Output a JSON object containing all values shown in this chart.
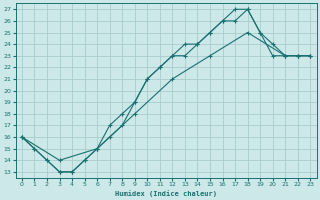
{
  "xlabel": "Humidex (Indice chaleur)",
  "bg_color": "#cce8e8",
  "grid_color": "#aacccc",
  "line_color": "#1a7070",
  "xlim": [
    -0.5,
    23.5
  ],
  "ylim": [
    12.5,
    27.5
  ],
  "line1_x": [
    0,
    1,
    2,
    3,
    4,
    5,
    6,
    7,
    8,
    9,
    10,
    11,
    12,
    13,
    14,
    15,
    16,
    17,
    18,
    19,
    20,
    21,
    22,
    23
  ],
  "line1_y": [
    16,
    15,
    14,
    13,
    13,
    14,
    15,
    16,
    17,
    19,
    21,
    22,
    23,
    24,
    24,
    25,
    26,
    26,
    27,
    25,
    23,
    23,
    23,
    23
  ],
  "line2_x": [
    0,
    1,
    2,
    3,
    4,
    5,
    6,
    7,
    8,
    9,
    10,
    11,
    12,
    13,
    14,
    15,
    16,
    17,
    18,
    19,
    20,
    21,
    22,
    23
  ],
  "line2_y": [
    16,
    15,
    14,
    13,
    13,
    14,
    15,
    17,
    18,
    19,
    21,
    22,
    23,
    23,
    24,
    25,
    26,
    27,
    27,
    25,
    24,
    23,
    23,
    23
  ],
  "line3_x": [
    0,
    3,
    6,
    9,
    12,
    15,
    18,
    21,
    22,
    23
  ],
  "line3_y": [
    16,
    14,
    15,
    18,
    21,
    23,
    25,
    23,
    23,
    23
  ]
}
